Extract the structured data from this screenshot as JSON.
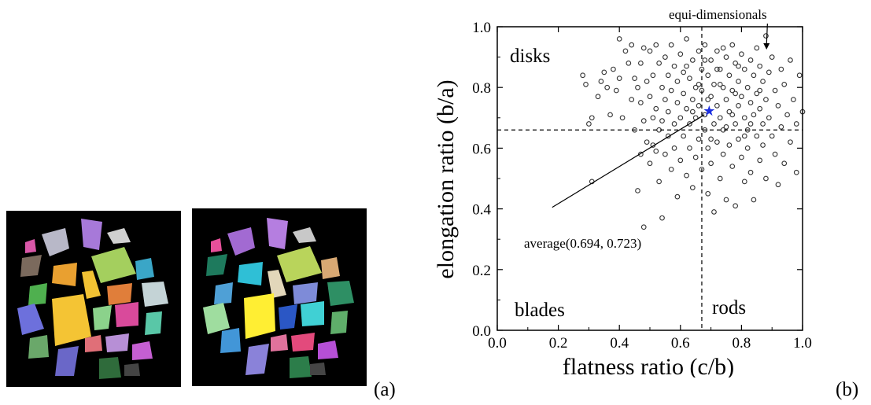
{
  "figure": {
    "panel_a_label": "(a)",
    "panel_b_label": "(b)"
  },
  "chart_data": {
    "type": "scatter",
    "xlabel": "flatness ratio (c/b)",
    "ylabel": "elongation ratio (b/a)",
    "xlim": [
      0.0,
      1.0
    ],
    "ylim": [
      0.0,
      1.0
    ],
    "xticks": [
      "0.0",
      "0.2",
      "0.4",
      "0.6",
      "0.8",
      "1.0"
    ],
    "yticks": [
      "0.0",
      "0.2",
      "0.4",
      "0.6",
      "0.8",
      "1.0"
    ],
    "grid": false,
    "threshold_x": 0.67,
    "threshold_y": 0.66,
    "regions": {
      "disks": "disks",
      "blades": "blades",
      "rods": "rods",
      "equi": "equi-dimensionals"
    },
    "average": {
      "label": "average(0.694, 0.723)",
      "x": 0.694,
      "y": 0.723,
      "color": "#1c2fe0"
    },
    "marker_color": "#333333",
    "points": [
      [
        0.28,
        0.84
      ],
      [
        0.29,
        0.81
      ],
      [
        0.3,
        0.68
      ],
      [
        0.31,
        0.7
      ],
      [
        0.31,
        0.49
      ],
      [
        0.33,
        0.77
      ],
      [
        0.34,
        0.82
      ],
      [
        0.35,
        0.85
      ],
      [
        0.36,
        0.8
      ],
      [
        0.37,
        0.71
      ],
      [
        0.38,
        0.86
      ],
      [
        0.39,
        0.79
      ],
      [
        0.4,
        0.83
      ],
      [
        0.4,
        0.96
      ],
      [
        0.41,
        0.7
      ],
      [
        0.42,
        0.92
      ],
      [
        0.43,
        0.88
      ],
      [
        0.44,
        0.76
      ],
      [
        0.44,
        0.94
      ],
      [
        0.45,
        0.66
      ],
      [
        0.45,
        0.83
      ],
      [
        0.46,
        0.8
      ],
      [
        0.46,
        0.46
      ],
      [
        0.47,
        0.88
      ],
      [
        0.47,
        0.75
      ],
      [
        0.47,
        0.58
      ],
      [
        0.48,
        0.69
      ],
      [
        0.48,
        0.93
      ],
      [
        0.48,
        0.34
      ],
      [
        0.49,
        0.82
      ],
      [
        0.49,
        0.62
      ],
      [
        0.5,
        0.77
      ],
      [
        0.5,
        0.92
      ],
      [
        0.5,
        0.55
      ],
      [
        0.51,
        0.7
      ],
      [
        0.51,
        0.84
      ],
      [
        0.51,
        0.61
      ],
      [
        0.52,
        0.94
      ],
      [
        0.52,
        0.73
      ],
      [
        0.52,
        0.59
      ],
      [
        0.53,
        0.88
      ],
      [
        0.53,
        0.66
      ],
      [
        0.53,
        0.49
      ],
      [
        0.54,
        0.8
      ],
      [
        0.54,
        0.69
      ],
      [
        0.54,
        0.37
      ],
      [
        0.55,
        0.9
      ],
      [
        0.55,
        0.76
      ],
      [
        0.55,
        0.58
      ],
      [
        0.56,
        0.84
      ],
      [
        0.56,
        0.72
      ],
      [
        0.56,
        0.64
      ],
      [
        0.57,
        0.94
      ],
      [
        0.57,
        0.79
      ],
      [
        0.57,
        0.53
      ],
      [
        0.58,
        0.87
      ],
      [
        0.58,
        0.68
      ],
      [
        0.58,
        0.6
      ],
      [
        0.59,
        0.75
      ],
      [
        0.59,
        0.82
      ],
      [
        0.59,
        0.44
      ],
      [
        0.6,
        0.91
      ],
      [
        0.6,
        0.7
      ],
      [
        0.6,
        0.56
      ],
      [
        0.61,
        0.78
      ],
      [
        0.61,
        0.64
      ],
      [
        0.61,
        0.85
      ],
      [
        0.62,
        0.96
      ],
      [
        0.62,
        0.73
      ],
      [
        0.62,
        0.51
      ],
      [
        0.63,
        0.83
      ],
      [
        0.63,
        0.68
      ],
      [
        0.63,
        0.6
      ],
      [
        0.64,
        0.89
      ],
      [
        0.64,
        0.76
      ],
      [
        0.64,
        0.47
      ],
      [
        0.65,
        0.8
      ],
      [
        0.65,
        0.7
      ],
      [
        0.65,
        0.57
      ],
      [
        0.66,
        0.92
      ],
      [
        0.66,
        0.74
      ],
      [
        0.66,
        0.63
      ],
      [
        0.67,
        0.86
      ],
      [
        0.67,
        0.79
      ],
      [
        0.67,
        0.53
      ],
      [
        0.68,
        0.94
      ],
      [
        0.68,
        0.71
      ],
      [
        0.68,
        0.66
      ],
      [
        0.69,
        0.84
      ],
      [
        0.69,
        0.6
      ],
      [
        0.69,
        0.45
      ],
      [
        0.7,
        0.89
      ],
      [
        0.7,
        0.77
      ],
      [
        0.7,
        0.55
      ],
      [
        0.71,
        0.81
      ],
      [
        0.71,
        0.68
      ],
      [
        0.71,
        0.39
      ],
      [
        0.72,
        0.92
      ],
      [
        0.72,
        0.74
      ],
      [
        0.72,
        0.62
      ],
      [
        0.73,
        0.86
      ],
      [
        0.73,
        0.7
      ],
      [
        0.73,
        0.5
      ],
      [
        0.74,
        0.8
      ],
      [
        0.74,
        0.66
      ],
      [
        0.74,
        0.58
      ],
      [
        0.75,
        0.9
      ],
      [
        0.75,
        0.76
      ],
      [
        0.75,
        0.43
      ],
      [
        0.76,
        0.84
      ],
      [
        0.76,
        0.72
      ],
      [
        0.76,
        0.61
      ],
      [
        0.77,
        0.94
      ],
      [
        0.77,
        0.79
      ],
      [
        0.77,
        0.54
      ],
      [
        0.78,
        0.88
      ],
      [
        0.78,
        0.68
      ],
      [
        0.78,
        0.41
      ],
      [
        0.79,
        0.82
      ],
      [
        0.79,
        0.74
      ],
      [
        0.79,
        0.63
      ],
      [
        0.8,
        0.91
      ],
      [
        0.8,
        0.77
      ],
      [
        0.8,
        0.57
      ],
      [
        0.81,
        0.86
      ],
      [
        0.81,
        0.7
      ],
      [
        0.81,
        0.49
      ],
      [
        0.82,
        0.8
      ],
      [
        0.82,
        0.66
      ],
      [
        0.82,
        0.6
      ],
      [
        0.83,
        0.89
      ],
      [
        0.83,
        0.75
      ],
      [
        0.83,
        0.52
      ],
      [
        0.84,
        0.84
      ],
      [
        0.84,
        0.71
      ],
      [
        0.84,
        0.43
      ],
      [
        0.85,
        0.93
      ],
      [
        0.85,
        0.78
      ],
      [
        0.85,
        0.64
      ],
      [
        0.86,
        0.87
      ],
      [
        0.86,
        0.73
      ],
      [
        0.86,
        0.56
      ],
      [
        0.87,
        0.82
      ],
      [
        0.87,
        0.68
      ],
      [
        0.87,
        0.61
      ],
      [
        0.88,
        0.97
      ],
      [
        0.88,
        0.76
      ],
      [
        0.88,
        0.5
      ],
      [
        0.89,
        0.85
      ],
      [
        0.89,
        0.7
      ],
      [
        0.9,
        0.9
      ],
      [
        0.9,
        0.64
      ],
      [
        0.91,
        0.79
      ],
      [
        0.91,
        0.58
      ],
      [
        0.92,
        0.74
      ],
      [
        0.92,
        0.48
      ],
      [
        0.93,
        0.86
      ],
      [
        0.93,
        0.67
      ],
      [
        0.94,
        0.81
      ],
      [
        0.94,
        0.55
      ],
      [
        0.95,
        0.71
      ],
      [
        0.96,
        0.89
      ],
      [
        0.96,
        0.62
      ],
      [
        0.97,
        0.76
      ],
      [
        0.98,
        0.68
      ],
      [
        0.98,
        0.52
      ],
      [
        0.99,
        0.84
      ],
      [
        1.0,
        0.72
      ],
      [
        0.62,
        0.87
      ],
      [
        0.66,
        0.81
      ],
      [
        0.69,
        0.76
      ],
      [
        0.72,
        0.86
      ],
      [
        0.74,
        0.93
      ],
      [
        0.77,
        0.71
      ],
      [
        0.79,
        0.87
      ],
      [
        0.81,
        0.64
      ],
      [
        0.64,
        0.72
      ],
      [
        0.7,
        0.63
      ],
      [
        0.75,
        0.67
      ],
      [
        0.78,
        0.78
      ],
      [
        0.83,
        0.68
      ],
      [
        0.86,
        0.79
      ],
      [
        0.68,
        0.89
      ],
      [
        0.73,
        0.81
      ]
    ]
  }
}
